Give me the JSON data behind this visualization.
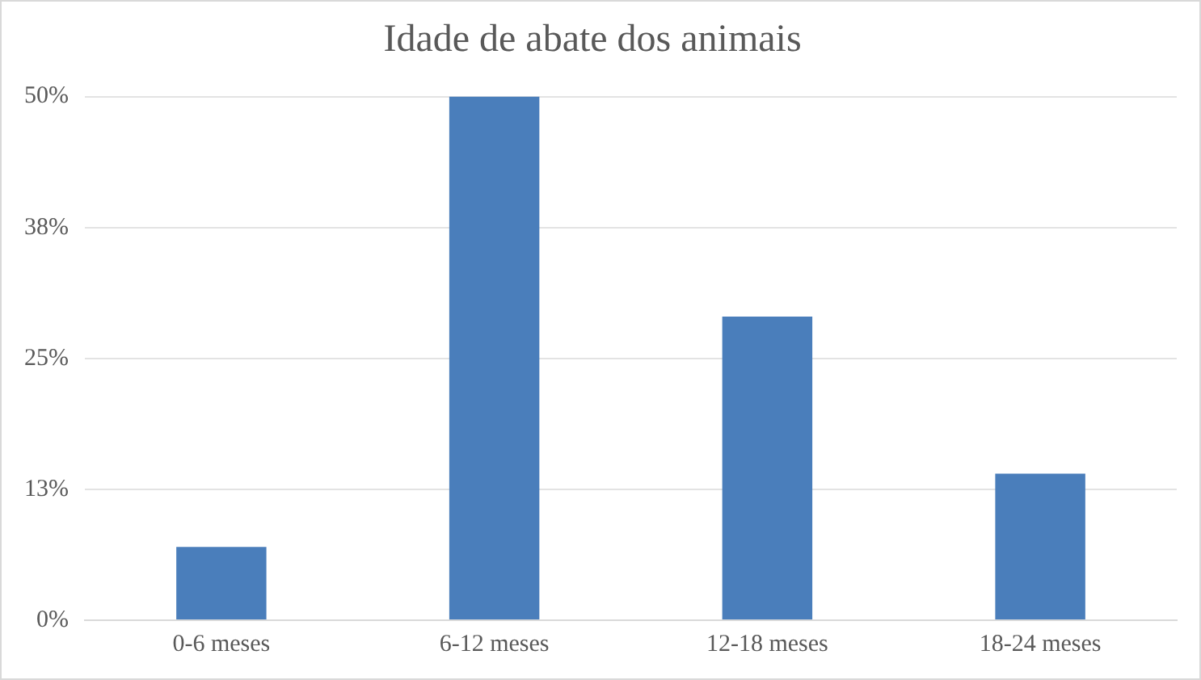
{
  "chart_data": {
    "type": "bar",
    "title": "Idade de abate dos animais",
    "categories": [
      "0-6 meses",
      "6-12 meses",
      "12-18 meses",
      "18-24 meses"
    ],
    "values": [
      7,
      50,
      29,
      14
    ],
    "color": "#4a7ebb",
    "ylim": [
      0,
      50
    ],
    "yticks": [
      {
        "value": 0,
        "label": "0%"
      },
      {
        "value": 12.5,
        "label": "13%"
      },
      {
        "value": 25,
        "label": "25%"
      },
      {
        "value": 37.5,
        "label": "38%"
      },
      {
        "value": 50,
        "label": "50%"
      }
    ],
    "grid": "y",
    "legend": false
  }
}
